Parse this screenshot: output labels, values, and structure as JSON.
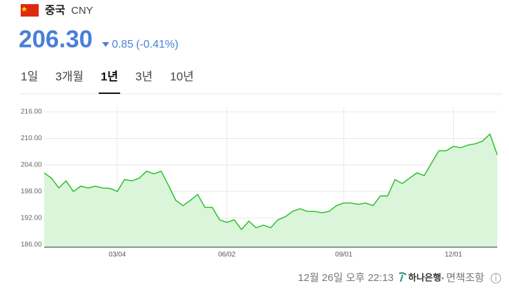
{
  "header": {
    "name": "중국",
    "code": "CNY",
    "price": "206.30",
    "change": "0.85",
    "change_pct": "(-0.41%)",
    "direction": "down"
  },
  "tabs": [
    {
      "label": "1일"
    },
    {
      "label": "3개월"
    },
    {
      "label": "1년",
      "active": true
    },
    {
      "label": "3년"
    },
    {
      "label": "10년"
    }
  ],
  "chart_data": {
    "type": "area",
    "color": "#2cbf2c",
    "fill": "#daf5da",
    "categories": [
      null,
      null,
      null,
      null,
      null,
      null,
      null,
      null,
      null,
      null,
      "03/04",
      null,
      null,
      null,
      null,
      null,
      null,
      null,
      null,
      null,
      null,
      null,
      null,
      null,
      null,
      "06/02",
      null,
      null,
      null,
      null,
      null,
      null,
      null,
      null,
      null,
      null,
      null,
      null,
      null,
      null,
      null,
      "09/01",
      null,
      null,
      null,
      null,
      null,
      null,
      null,
      null,
      null,
      null,
      null,
      null,
      null,
      null,
      "12/01",
      null,
      null,
      null,
      null,
      null,
      null
    ],
    "values": [
      202.2,
      201,
      198.8,
      200.4,
      198,
      199.2,
      198.8,
      199.2,
      198.8,
      198.7,
      198,
      200.7,
      200.4,
      201,
      202.6,
      202,
      202.6,
      199.4,
      196,
      194.8,
      196,
      197.3,
      194.4,
      194.4,
      191.6,
      191,
      191.6,
      189.4,
      191.3,
      189.8,
      190.4,
      189.8,
      191.6,
      192.3,
      193.5,
      194.1,
      193.5,
      193.5,
      193.2,
      193.5,
      194.8,
      195.4,
      195.4,
      195.1,
      195.4,
      194.8,
      197,
      197,
      200.7,
      199.8,
      201,
      202.2,
      201.6,
      204.4,
      207.2,
      207.2,
      208.2,
      207.9,
      208.5,
      208.8,
      209.4,
      211,
      206.3
    ],
    "ylim": [
      185.4,
      217.1
    ],
    "yticks": [
      {
        "value": 186,
        "label": "186.00"
      },
      {
        "value": 192,
        "label": "192.00"
      },
      {
        "value": 198,
        "label": "198.00"
      },
      {
        "value": 204,
        "label": "204.00"
      },
      {
        "value": 210,
        "label": "210.00"
      },
      {
        "value": 216,
        "label": "216.00"
      }
    ],
    "grid": true
  },
  "footer": {
    "timestamp": "12월 26일 오후 22:13",
    "bank": "하나은행",
    "disclaimer": "면책조항"
  }
}
